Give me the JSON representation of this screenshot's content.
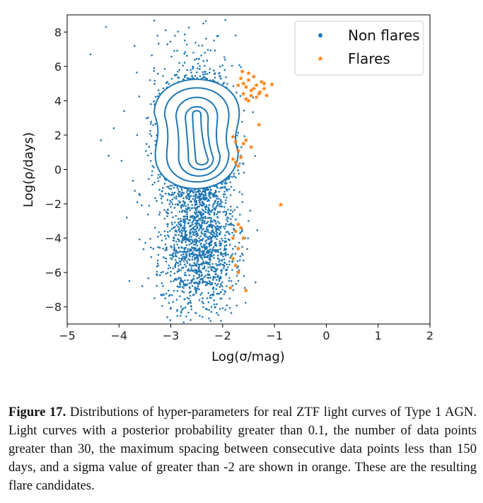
{
  "chart_data": {
    "type": "scatter",
    "xlabel": "Log(σ/mag)",
    "ylabel": "Log(ρ/days)",
    "xlim": [
      -5,
      2
    ],
    "ylim": [
      -9,
      9
    ],
    "x_ticks": [
      -5,
      -4,
      -3,
      -2,
      -1,
      0,
      1,
      2
    ],
    "y_ticks": [
      -8,
      -6,
      -4,
      -2,
      0,
      2,
      4,
      6,
      8
    ],
    "x_tick_labels": [
      "−5",
      "−4",
      "−3",
      "−2",
      "−1",
      "0",
      "1",
      "2"
    ],
    "y_tick_labels": [
      "−8",
      "−6",
      "−4",
      "−2",
      "0",
      "2",
      "4",
      "6",
      "8"
    ],
    "grid": false,
    "legend": {
      "placement": "top-right",
      "entries": [
        "Non flares",
        "Flares"
      ]
    },
    "series": [
      {
        "name": "Non flares",
        "color": "#1f77b4",
        "marker": "dot",
        "distribution": {
          "clusters": [
            {
              "cx": -2.5,
              "cy": 3.0,
              "sx": 0.3,
              "sy": 1.2,
              "weight": 0.38
            },
            {
              "cx": -2.5,
              "cy": 0.5,
              "sx": 0.3,
              "sy": 1.3,
              "weight": 0.3
            },
            {
              "cx": -2.45,
              "cy": -4.6,
              "sx": 0.35,
              "sy": 1.9,
              "weight": 0.22
            },
            {
              "cx": -2.5,
              "cy": 0.0,
              "sx": 0.45,
              "sy": 4.2,
              "weight": 0.1
            }
          ],
          "outliers": [
            [
              -4.55,
              6.7
            ],
            [
              -4.25,
              8.3
            ],
            [
              -4.1,
              2.4
            ],
            [
              -4.35,
              1.7
            ],
            [
              -4.2,
              0.8
            ],
            [
              -3.9,
              3.4
            ],
            [
              -3.95,
              0.5
            ],
            [
              -3.7,
              7.2
            ],
            [
              -3.85,
              -2.8
            ],
            [
              -3.8,
              -6.5
            ],
            [
              -3.55,
              -6.8
            ],
            [
              -3.1,
              8.1
            ],
            [
              -1.95,
              8.7
            ],
            [
              -1.75,
              7.8
            ],
            [
              -1.5,
              -3.0
            ],
            [
              -3.65,
              2.0
            ],
            [
              -3.6,
              -1.5
            ],
            [
              -1.6,
              -5.3
            ],
            [
              -1.65,
              0.8
            ],
            [
              -3.4,
              5.2
            ]
          ]
        }
      },
      {
        "name": "Flares",
        "color": "#ff7f0e",
        "marker": "star",
        "points": [
          [
            -1.65,
            5.3
          ],
          [
            -1.6,
            5.0
          ],
          [
            -1.55,
            4.8
          ],
          [
            -1.5,
            5.2
          ],
          [
            -1.45,
            4.6
          ],
          [
            -1.4,
            5.4
          ],
          [
            -1.35,
            4.9
          ],
          [
            -1.3,
            4.4
          ],
          [
            -1.25,
            5.1
          ],
          [
            -1.2,
            4.7
          ],
          [
            -1.15,
            4.3
          ],
          [
            -1.6,
            4.4
          ],
          [
            -1.55,
            4.1
          ],
          [
            -1.5,
            5.6
          ],
          [
            -1.45,
            4.3
          ],
          [
            -1.7,
            4.9
          ],
          [
            -1.35,
            4.2
          ],
          [
            -1.28,
            4.5
          ],
          [
            -1.5,
            4.0
          ],
          [
            -1.4,
            4.7
          ],
          [
            -1.2,
            5.0
          ],
          [
            -1.05,
            4.95
          ],
          [
            -1.62,
            5.7
          ],
          [
            -1.3,
            2.6
          ],
          [
            -1.55,
            1.7
          ],
          [
            -1.6,
            1.5
          ],
          [
            -1.7,
            1.1
          ],
          [
            -1.45,
            1.3
          ],
          [
            -1.75,
            1.6
          ],
          [
            -1.8,
            0.6
          ],
          [
            -1.75,
            0.4
          ],
          [
            -1.7,
            0.2
          ],
          [
            -1.65,
            0.7
          ],
          [
            -1.8,
            1.9
          ],
          [
            -0.88,
            -2.05
          ],
          [
            -1.7,
            -3.2
          ],
          [
            -1.75,
            -3.6
          ],
          [
            -1.65,
            -3.4
          ],
          [
            -1.8,
            -4.0
          ],
          [
            -1.7,
            -4.6
          ],
          [
            -1.6,
            -4.0
          ],
          [
            -1.8,
            -5.2
          ],
          [
            -1.75,
            -5.6
          ],
          [
            -1.7,
            -6.0
          ],
          [
            -1.85,
            -6.9
          ],
          [
            -1.55,
            -7.05
          ]
        ]
      }
    ],
    "contours": {
      "color": "#1f77b4",
      "levels": [
        {
          "top": {
            "cx": -2.5,
            "cy": 3.25,
            "rx": 0.82,
            "ry": 2.0
          },
          "bottom": {
            "cx": -2.5,
            "cy": 0.85,
            "rx": 0.8,
            "ry": 2.0
          }
        },
        {
          "top": {
            "cx": -2.5,
            "cy": 3.15,
            "rx": 0.62,
            "ry": 1.6
          },
          "bottom": {
            "cx": -2.48,
            "cy": 0.8,
            "rx": 0.6,
            "ry": 1.55
          }
        },
        {
          "top": {
            "cx": -2.5,
            "cy": 3.05,
            "rx": 0.4,
            "ry": 1.15
          },
          "bottom": {
            "cx": -2.45,
            "cy": 0.7,
            "rx": 0.4,
            "ry": 1.1
          }
        },
        {
          "top": {
            "cx": -2.5,
            "cy": 3.0,
            "rx": 0.22,
            "ry": 0.65
          },
          "bottom": {
            "cx": -2.42,
            "cy": 0.6,
            "rx": 0.24,
            "ry": 0.62
          }
        },
        {
          "top": {
            "cx": -2.5,
            "cy": 3.2,
            "rx": 0.08,
            "ry": 0.22
          },
          "bottom": {
            "cx": -2.4,
            "cy": 0.55,
            "rx": 0.12,
            "ry": 0.28
          }
        }
      ]
    }
  },
  "caption": {
    "label": "Figure 17.",
    "text": " Distributions of hyper-parameters for real ZTF light curves of Type 1 AGN. Light curves with a posterior probability greater than 0.1, the number of data points greater than 30, the maximum spacing between consecutive data points less than 150 days, and a sigma value of greater than -2 are shown in orange. These are the resulting flare candidates."
  }
}
